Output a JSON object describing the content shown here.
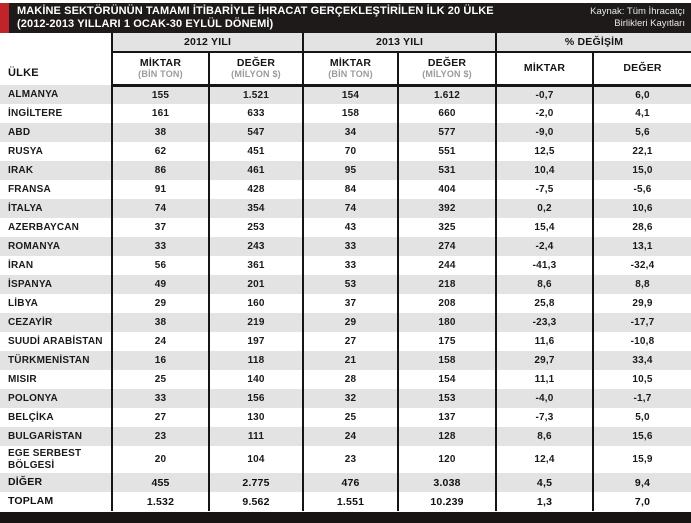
{
  "header": {
    "title_line1": "MAKİNE SEKTÖRÜNÜN TAMAMI İTİBARİYLE İHRACAT GERÇEKLEŞTİRİLEN İLK 20 ÜLKE",
    "title_line2": "(2012-2013 YILLARI 1 OCAK-30 EYLÜL DÖNEMİ)",
    "source_line1": "Kaynak: Tüm İhracatçı",
    "source_line2": "Birlikleri Kayıtları"
  },
  "colors": {
    "accent_red": "#c1232b",
    "header_black": "#1d1a19",
    "row_gray": "#e3e3e3",
    "unit_text_gray": "#9b9b9b"
  },
  "table": {
    "country_header": "ÜLKE",
    "groups": [
      {
        "label": "2012 YILI"
      },
      {
        "label": "2013 YILI"
      },
      {
        "label": "% DEĞİŞİM"
      }
    ],
    "subheaders": [
      {
        "label": "MİKTAR",
        "unit": "(BİN TON)"
      },
      {
        "label": "DEĞER",
        "unit": "(MİLYON $)"
      },
      {
        "label": "MİKTAR",
        "unit": "(BİN TON)"
      },
      {
        "label": "DEĞER",
        "unit": "(MİLYON $)"
      },
      {
        "label": "MİKTAR",
        "unit": ""
      },
      {
        "label": "DEĞER",
        "unit": ""
      }
    ],
    "rows": [
      {
        "country": "ALMANYA",
        "values": [
          "155",
          "1.521",
          "154",
          "1.612",
          "-0,7",
          "6,0"
        ],
        "bold": false
      },
      {
        "country": "İNGİLTERE",
        "values": [
          "161",
          "633",
          "158",
          "660",
          "-2,0",
          "4,1"
        ],
        "bold": false
      },
      {
        "country": "ABD",
        "values": [
          "38",
          "547",
          "34",
          "577",
          "-9,0",
          "5,6"
        ],
        "bold": false
      },
      {
        "country": "RUSYA",
        "values": [
          "62",
          "451",
          "70",
          "551",
          "12,5",
          "22,1"
        ],
        "bold": false
      },
      {
        "country": "IRAK",
        "values": [
          "86",
          "461",
          "95",
          "531",
          "10,4",
          "15,0"
        ],
        "bold": false
      },
      {
        "country": "FRANSA",
        "values": [
          "91",
          "428",
          "84",
          "404",
          "-7,5",
          "-5,6"
        ],
        "bold": false
      },
      {
        "country": "İTALYA",
        "values": [
          "74",
          "354",
          "74",
          "392",
          "0,2",
          "10,6"
        ],
        "bold": false
      },
      {
        "country": "AZERBAYCAN",
        "values": [
          "37",
          "253",
          "43",
          "325",
          "15,4",
          "28,6"
        ],
        "bold": false
      },
      {
        "country": "ROMANYA",
        "values": [
          "33",
          "243",
          "33",
          "274",
          "-2,4",
          "13,1"
        ],
        "bold": false
      },
      {
        "country": "İRAN",
        "values": [
          "56",
          "361",
          "33",
          "244",
          "-41,3",
          "-32,4"
        ],
        "bold": false
      },
      {
        "country": "İSPANYA",
        "values": [
          "49",
          "201",
          "53",
          "218",
          "8,6",
          "8,8"
        ],
        "bold": false
      },
      {
        "country": "LİBYA",
        "values": [
          "29",
          "160",
          "37",
          "208",
          "25,8",
          "29,9"
        ],
        "bold": false
      },
      {
        "country": "CEZAYİR",
        "values": [
          "38",
          "219",
          "29",
          "180",
          "-23,3",
          "-17,7"
        ],
        "bold": false
      },
      {
        "country": "SUUDİ ARABİSTAN",
        "values": [
          "24",
          "197",
          "27",
          "175",
          "11,6",
          "-10,8"
        ],
        "bold": false
      },
      {
        "country": "TÜRKMENİSTAN",
        "values": [
          "16",
          "118",
          "21",
          "158",
          "29,7",
          "33,4"
        ],
        "bold": false
      },
      {
        "country": "MISIR",
        "values": [
          "25",
          "140",
          "28",
          "154",
          "11,1",
          "10,5"
        ],
        "bold": false
      },
      {
        "country": "POLONYA",
        "values": [
          "33",
          "156",
          "32",
          "153",
          "-4,0",
          "-1,7"
        ],
        "bold": false
      },
      {
        "country": "BELÇİKA",
        "values": [
          "27",
          "130",
          "25",
          "137",
          "-7,3",
          "5,0"
        ],
        "bold": false
      },
      {
        "country": "BULGARİSTAN",
        "values": [
          "23",
          "111",
          "24",
          "128",
          "8,6",
          "15,6"
        ],
        "bold": false
      },
      {
        "country": "EGE SERBEST BÖLGESİ",
        "values": [
          "20",
          "104",
          "23",
          "120",
          "12,4",
          "15,9"
        ],
        "bold": false
      },
      {
        "country": "DİĞER",
        "values": [
          "455",
          "2.775",
          "476",
          "3.038",
          "4,5",
          "9,4"
        ],
        "bold": true
      },
      {
        "country": "TOPLAM",
        "values": [
          "1.532",
          "9.562",
          "1.551",
          "10.239",
          "1,3",
          "7,0"
        ],
        "bold": true
      }
    ]
  }
}
